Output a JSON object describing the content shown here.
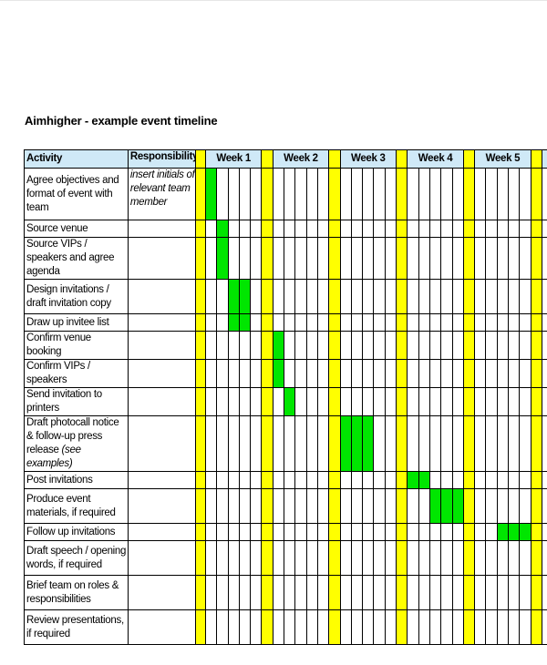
{
  "document": {
    "title": "Aimhigher - example event timeline",
    "headers": {
      "activity": "Activity",
      "responsibility": "Responsibility",
      "weeks": [
        "Week 1",
        "Week 2",
        "Week 3",
        "Week 4",
        "Week 5"
      ]
    },
    "responsibility_note": "insert initials of relevant team member",
    "colors": {
      "header": "#cfe9f7",
      "separator": "#ffff00",
      "bar": "#00e600"
    },
    "rows": [
      {
        "activity": "Agree objectives and format of event with team",
        "bar": [
          1,
          1
        ]
      },
      {
        "activity": "Source venue",
        "bar": [
          2,
          2
        ]
      },
      {
        "activity": "Source VIPs / speakers and agree agenda",
        "bar": [
          2,
          2
        ]
      },
      {
        "activity": "Design invitations / draft invitation copy",
        "bar": [
          3,
          4
        ]
      },
      {
        "activity": "Draw up invitee list",
        "bar": [
          3,
          4
        ]
      },
      {
        "activity": "Confirm venue booking",
        "bar": [
          7,
          7
        ]
      },
      {
        "activity": "Confirm VIPs / speakers",
        "bar": [
          7,
          7
        ]
      },
      {
        "activity": "Send invitation to printers",
        "bar": [
          8,
          8
        ]
      },
      {
        "activity": "Draft photocall notice & follow-up press release",
        "note": "(see examples)",
        "bar": [
          13,
          15
        ]
      },
      {
        "activity": "Post invitations",
        "bar": [
          19,
          20
        ]
      },
      {
        "activity": "Produce event materials, if required",
        "bar": [
          21,
          23
        ]
      },
      {
        "activity": "Follow up invitations",
        "bar": [
          27,
          29
        ]
      },
      {
        "activity": "Draft speech / opening words, if required",
        "bar": null
      },
      {
        "activity": "Brief team on roles & responsibilities",
        "bar": null
      },
      {
        "activity": "Review presentations, if required",
        "bar": null
      }
    ]
  }
}
